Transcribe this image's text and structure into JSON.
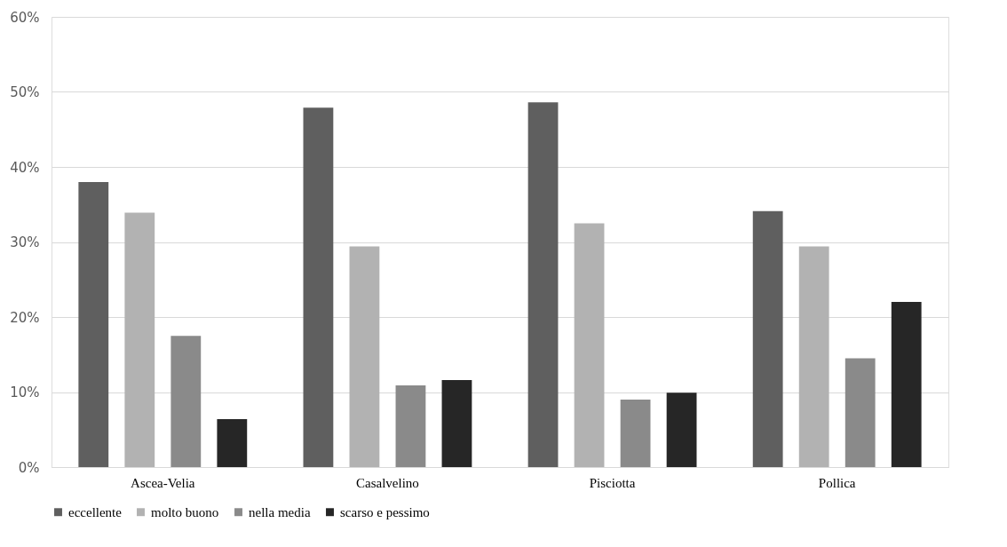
{
  "chart_data": {
    "type": "bar",
    "categories": [
      "Ascea-Velia",
      "Casalvelino",
      "Pisciotta",
      "Pollica"
    ],
    "series": [
      {
        "name": "eccellente",
        "color": "#5f5f5f",
        "values": [
          38.0,
          47.9,
          48.6,
          34.1
        ]
      },
      {
        "name": "molto buono",
        "color": "#b2b2b2",
        "values": [
          33.9,
          29.4,
          32.5,
          29.4
        ]
      },
      {
        "name": "nella media",
        "color": "#8a8a8a",
        "values": [
          17.5,
          10.9,
          9.0,
          14.5
        ]
      },
      {
        "name": "scarso e pessimo",
        "color": "#262626",
        "values": [
          6.4,
          11.6,
          9.9,
          22.0
        ]
      }
    ],
    "ylim": [
      0,
      60
    ],
    "yticks": [
      {
        "value": 0,
        "label": "0%"
      },
      {
        "value": 10,
        "label": "10%"
      },
      {
        "value": 20,
        "label": "20%"
      },
      {
        "value": 30,
        "label": "30%"
      },
      {
        "value": 40,
        "label": "40%"
      },
      {
        "value": 50,
        "label": "50%"
      },
      {
        "value": 60,
        "label": "60%"
      }
    ],
    "grid": "y",
    "legend": "bottom"
  }
}
